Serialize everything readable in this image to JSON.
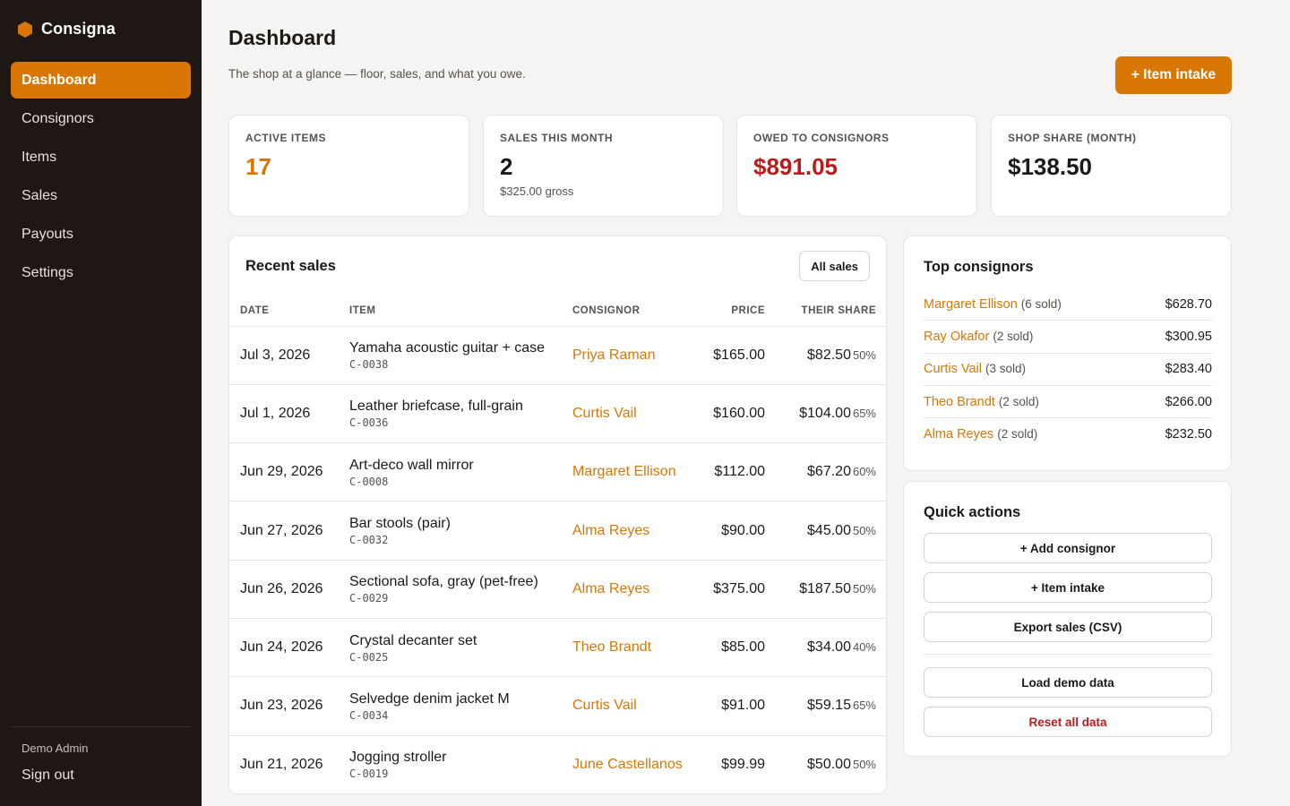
{
  "app": {
    "name": "Consigna",
    "logo_icon": "hexagon-logo-icon",
    "accent": "#d97706"
  },
  "sidebar": {
    "items": [
      {
        "label": "Dashboard",
        "active": true
      },
      {
        "label": "Consignors"
      },
      {
        "label": "Items"
      },
      {
        "label": "Sales"
      },
      {
        "label": "Payouts"
      },
      {
        "label": "Settings"
      }
    ],
    "user": "Demo Admin",
    "sign_out": "Sign out"
  },
  "header": {
    "title": "Dashboard",
    "subtitle": "The shop at a glance — floor, sales, and what you owe.",
    "primary_action": "+ Item intake"
  },
  "stats": [
    {
      "label": "Active items",
      "value": "17",
      "color": "#d97706"
    },
    {
      "label": "Sales this month",
      "value": "2",
      "note": "$325.00 gross"
    },
    {
      "label": "Owed to consignors",
      "value": "$891.05",
      "color": "#b91c1c"
    },
    {
      "label": "Shop share (month)",
      "value": "$138.50"
    }
  ],
  "recent_sales": {
    "title": "Recent sales",
    "all_button": "All sales",
    "columns": [
      "Date",
      "Item",
      "Consignor",
      "Price",
      "Their share"
    ],
    "rows": [
      {
        "date": "Jul 3, 2026",
        "item": "Yamaha acoustic guitar + case",
        "sku": "C-0038",
        "consignor": "Priya Raman",
        "price": "$165.00",
        "share": "$82.50",
        "pct": "50%"
      },
      {
        "date": "Jul 1, 2026",
        "item": "Leather briefcase, full-grain",
        "sku": "C-0036",
        "consignor": "Curtis Vail",
        "price": "$160.00",
        "share": "$104.00",
        "pct": "65%"
      },
      {
        "date": "Jun 29, 2026",
        "item": "Art-deco wall mirror",
        "sku": "C-0008",
        "consignor": "Margaret Ellison",
        "price": "$112.00",
        "share": "$67.20",
        "pct": "60%"
      },
      {
        "date": "Jun 27, 2026",
        "item": "Bar stools (pair)",
        "sku": "C-0032",
        "consignor": "Alma Reyes",
        "price": "$90.00",
        "share": "$45.00",
        "pct": "50%"
      },
      {
        "date": "Jun 26, 2026",
        "item": "Sectional sofa, gray (pet-free)",
        "sku": "C-0029",
        "consignor": "Alma Reyes",
        "price": "$375.00",
        "share": "$187.50",
        "pct": "50%"
      },
      {
        "date": "Jun 24, 2026",
        "item": "Crystal decanter set",
        "sku": "C-0025",
        "consignor": "Theo Brandt",
        "price": "$85.00",
        "share": "$34.00",
        "pct": "40%"
      },
      {
        "date": "Jun 23, 2026",
        "item": "Selvedge denim jacket M",
        "sku": "C-0034",
        "consignor": "Curtis Vail",
        "price": "$91.00",
        "share": "$59.15",
        "pct": "65%"
      },
      {
        "date": "Jun 21, 2026",
        "item": "Jogging stroller",
        "sku": "C-0019",
        "consignor": "June Castellanos",
        "price": "$99.99",
        "share": "$50.00",
        "pct": "50%"
      }
    ]
  },
  "top_consignors": {
    "title": "Top consignors",
    "rows": [
      {
        "name": "Margaret Ellison",
        "count": "(6 sold)",
        "amount": "$628.70"
      },
      {
        "name": "Ray Okafor",
        "count": "(2 sold)",
        "amount": "$300.95"
      },
      {
        "name": "Curtis Vail",
        "count": "(3 sold)",
        "amount": "$283.40"
      },
      {
        "name": "Theo Brandt",
        "count": "(2 sold)",
        "amount": "$266.00"
      },
      {
        "name": "Alma Reyes",
        "count": "(2 sold)",
        "amount": "$232.50"
      }
    ]
  },
  "quick_actions": {
    "title": "Quick actions",
    "add_consignor": "+ Add consignor",
    "item_intake": "+ Item intake",
    "export_sales": "Export sales (CSV)",
    "load_demo": "Load demo data",
    "reset_all": "Reset all data",
    "danger_color": "#b91c1c"
  }
}
